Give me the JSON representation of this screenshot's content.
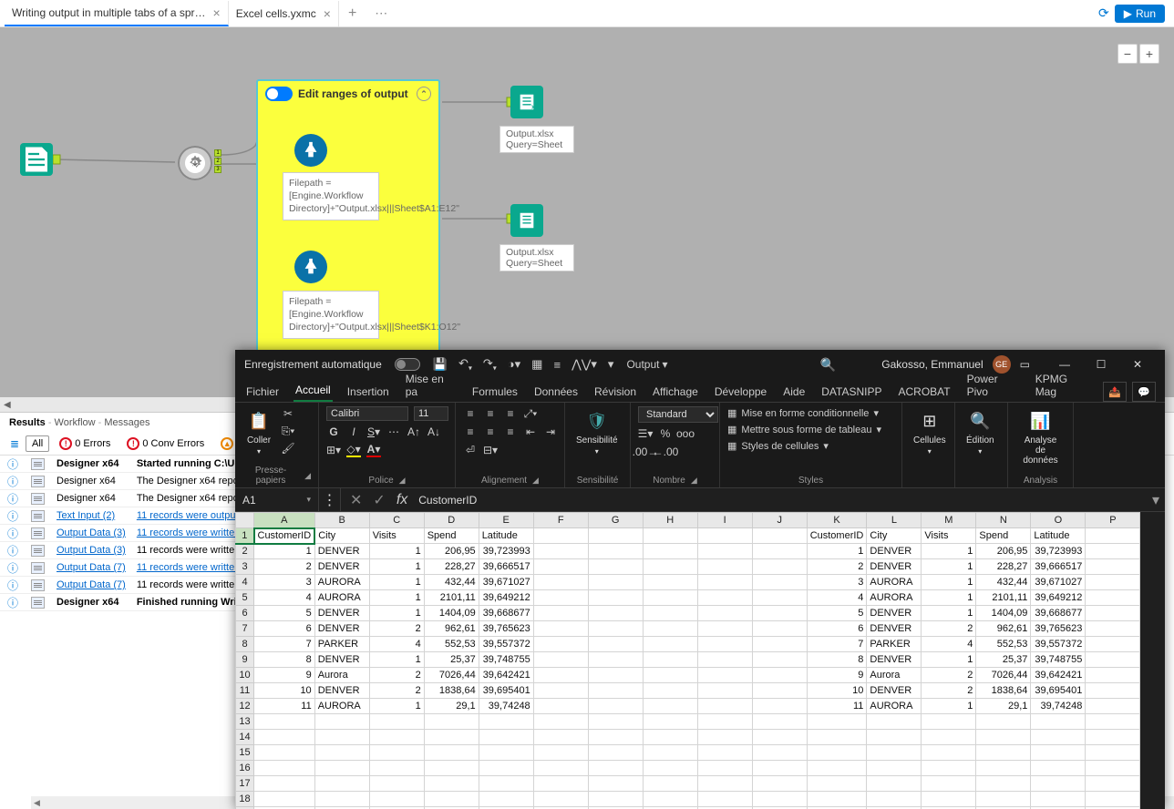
{
  "tabs": {
    "tab1": "Writing output in multiple tabs of a spr…",
    "tab2": "Excel cells.yxmc"
  },
  "run_label": "Run",
  "canvas": {
    "container_title": "Edit ranges of output",
    "formula1": "Filepath = [Engine.Workflow Directory]+\"Output.xlsx|||Sheet$A1:E12\"",
    "formula2": "Filepath = [Engine.Workflow Directory]+\"Output.xlsx|||Sheet$K1:O12\"",
    "output1_line1": "Output.xlsx",
    "output1_line2": "Query=Sheet",
    "output2_line1": "Output.xlsx",
    "output2_line2": "Query=Sheet",
    "zoom_minus": "−",
    "zoom_plus": "+"
  },
  "results": {
    "title": "Results",
    "sub1": "Workflow",
    "sub2": "Messages",
    "all": "All",
    "errors": "0 Errors",
    "conv": "0 Conv Errors",
    "warn": "0 W",
    "rows": [
      {
        "src": "Designer x64",
        "msg": "Started running C:\\U",
        "bold": true,
        "link": false
      },
      {
        "src": "Designer x64",
        "msg": "The Designer x64 repor",
        "bold": false,
        "link": false
      },
      {
        "src": "Designer x64",
        "msg": "The Designer x64 repor",
        "bold": false,
        "link": false
      },
      {
        "src": "Text Input (2)",
        "msg": "11 records were output",
        "bold": false,
        "link": true,
        "srclink": true
      },
      {
        "src": "Output Data (3)",
        "msg": "11 records were written",
        "bold": false,
        "link": true,
        "srclink": true
      },
      {
        "src": "Output Data (3)",
        "msg": "11 records were written",
        "bold": false,
        "link": false,
        "srclink": true
      },
      {
        "src": "Output Data (7)",
        "msg": "11 records were written",
        "bold": false,
        "link": true,
        "srclink": true
      },
      {
        "src": "Output Data (7)",
        "msg": "11 records were written",
        "bold": false,
        "link": false,
        "srclink": true
      },
      {
        "src": "Designer x64",
        "msg": "Finished running Writi",
        "bold": true,
        "link": false
      }
    ]
  },
  "excel": {
    "autosave": "Enregistrement automatique",
    "doc_name": "Output",
    "user": "Gakosso, Emmanuel",
    "user_initials": "GE",
    "tabs": {
      "fichier": "Fichier",
      "accueil": "Accueil",
      "insertion": "Insertion",
      "mep": "Mise en pa",
      "formules": "Formules",
      "donnees": "Données",
      "revision": "Révision",
      "affichage": "Affichage",
      "dev": "Développe",
      "aide": "Aide",
      "datasnip": "DATASNIPP",
      "acrobat": "ACROBAT",
      "powerpivot": "Power Pivo",
      "kpmg": "KPMG Mag"
    },
    "ribbon": {
      "font_name": "Calibri",
      "font_size": "11",
      "coller": "Coller",
      "number_format": "Standard",
      "sensibilite": "Sensibilité",
      "cond": "Mise en forme conditionnelle",
      "table": "Mettre sous forme de tableau",
      "cell_styles": "Styles de cellules",
      "cellules": "Cellules",
      "edition": "Édition",
      "analyse": "Analyse de données",
      "g_presse": "Presse-papiers",
      "g_police": "Police",
      "g_align": "Alignement",
      "g_sens": "Sensibilité",
      "g_nombre": "Nombre",
      "g_styles": "Styles",
      "g_analysis": "Analysis"
    },
    "namebox": "A1",
    "formula_value": "CustomerID",
    "columns": [
      "A",
      "B",
      "C",
      "D",
      "E",
      "F",
      "G",
      "H",
      "I",
      "J",
      "K",
      "L",
      "M",
      "N",
      "O",
      "P"
    ],
    "headers": [
      "CustomerID",
      "City",
      "Visits",
      "Spend",
      "Latitude"
    ],
    "data": [
      [
        1,
        "DENVER",
        1,
        "206,95",
        "39,723993"
      ],
      [
        2,
        "DENVER",
        1,
        "228,27",
        "39,666517"
      ],
      [
        3,
        "AURORA",
        1,
        "432,44",
        "39,671027"
      ],
      [
        4,
        "AURORA",
        1,
        "2101,11",
        "39,649212"
      ],
      [
        5,
        "DENVER",
        1,
        "1404,09",
        "39,668677"
      ],
      [
        6,
        "DENVER",
        2,
        "962,61",
        "39,765623"
      ],
      [
        7,
        "PARKER",
        4,
        "552,53",
        "39,557372"
      ],
      [
        8,
        "DENVER",
        1,
        "25,37",
        "39,748755"
      ],
      [
        9,
        "Aurora",
        2,
        "7026,44",
        "39,642421"
      ],
      [
        10,
        "DENVER",
        2,
        "1838,64",
        "39,695401"
      ],
      [
        11,
        "AURORA",
        1,
        "29,1",
        "39,74248"
      ]
    ]
  }
}
